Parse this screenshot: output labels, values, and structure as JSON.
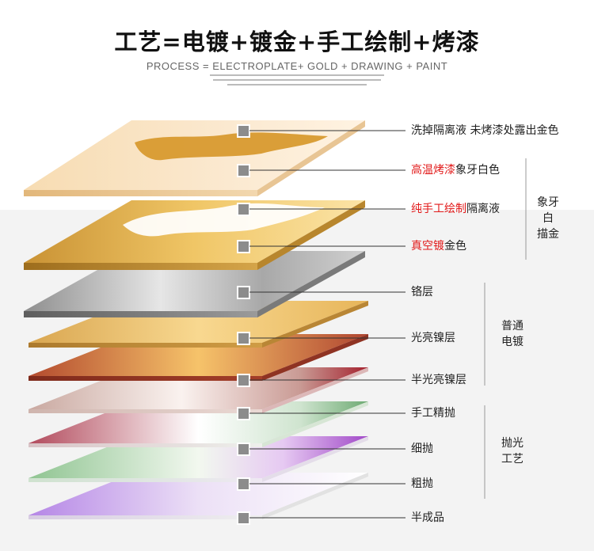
{
  "header": {
    "title": "工艺=电镀+镀金+手工绘制+烤漆",
    "subtitle": "PROCESS = ELECTROPLATE+ GOLD + DRAWING + PAINT"
  },
  "labels": [
    {
      "plain": "洗掉隔离液 未烤漆处露出金色"
    },
    {
      "red": "高温烤漆",
      "plain": "象牙白色"
    },
    {
      "red": "纯手工绘制",
      "plain": "隔离液"
    },
    {
      "red": "真空镀",
      "plain": "金色"
    },
    {
      "plain": "铬层"
    },
    {
      "plain": "光亮镍层"
    },
    {
      "plain": "半光亮镍层"
    },
    {
      "plain": "手工精抛"
    },
    {
      "plain": "细抛"
    },
    {
      "plain": "粗抛"
    },
    {
      "plain": "半成品"
    }
  ],
  "groups": [
    {
      "line1": "象牙白",
      "line2": "描金"
    },
    {
      "line1": "普通",
      "line2": "电镀"
    },
    {
      "line1": "抛光",
      "line2": "工艺"
    }
  ],
  "colors": {
    "accent_red": "#e21b1b",
    "marker": "#8c8c8c"
  }
}
